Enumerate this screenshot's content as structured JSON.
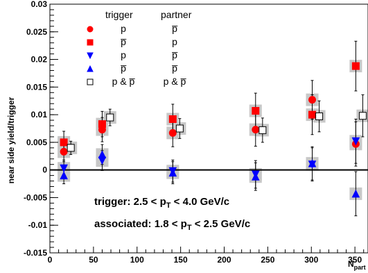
{
  "chart_data": {
    "type": "scatter",
    "ylabel": "near side yield/trigger",
    "xlabel": "N_part",
    "xlabel_main": "N",
    "xlabel_sub": "part",
    "xlim": [
      0,
      365
    ],
    "ylim": [
      -0.015,
      0.03
    ],
    "xticks": [
      0,
      50,
      100,
      150,
      200,
      250,
      300,
      350
    ],
    "xtick_labels": [
      "0",
      "50",
      "100",
      "150",
      "200",
      "250",
      "300",
      "350"
    ],
    "yticks": [
      -0.015,
      -0.01,
      -0.005,
      0,
      0.005,
      0.01,
      0.015,
      0.02,
      0.025,
      0.03
    ],
    "ytick_labels": [
      "-0.015",
      "-0.01",
      "-0.005",
      "0",
      "0.005",
      "0.01",
      "0.015",
      "0.02",
      "0.025",
      "0.03"
    ],
    "zero_line": true,
    "legend": {
      "header_trigger": "trigger",
      "header_partner": "partner",
      "placement": "top-left"
    },
    "series": [
      {
        "trigger": "p",
        "partner": "p̅",
        "marker": "circle",
        "color": "#ff0000",
        "filled": true,
        "points": [
          {
            "x": 16,
            "y": 0.0033,
            "err": 0.0018
          },
          {
            "x": 60,
            "y": 0.0073,
            "err": 0.0022
          },
          {
            "x": 141,
            "y": 0.0067,
            "err": 0.0025
          },
          {
            "x": 236,
            "y": 0.0073,
            "err": 0.003
          },
          {
            "x": 301,
            "y": 0.0127,
            "err": 0.0035
          },
          {
            "x": 351,
            "y": 0.0047,
            "err": 0.004
          }
        ]
      },
      {
        "trigger": "p̅",
        "partner": "p",
        "marker": "square",
        "color": "#ff0000",
        "filled": true,
        "points": [
          {
            "x": 16,
            "y": 0.005,
            "err": 0.002
          },
          {
            "x": 60,
            "y": 0.0083,
            "err": 0.0023
          },
          {
            "x": 141,
            "y": 0.0092,
            "err": 0.0027
          },
          {
            "x": 236,
            "y": 0.0107,
            "err": 0.0032
          },
          {
            "x": 301,
            "y": 0.01,
            "err": 0.0036
          },
          {
            "x": 351,
            "y": 0.0188,
            "err": 0.0045
          }
        ]
      },
      {
        "trigger": "p",
        "partner": "p̅",
        "marker": "triangle-down",
        "color": "#0000ff",
        "filled": true,
        "points": [
          {
            "x": 16,
            "y": 0.0003,
            "err": 0.0015
          },
          {
            "x": 60,
            "y": 0.0017,
            "err": 0.0018
          },
          {
            "x": 141,
            "y": -0.0002,
            "err": 0.002
          },
          {
            "x": 236,
            "y": -0.0008,
            "err": 0.0025
          },
          {
            "x": 301,
            "y": 0.001,
            "err": 0.003
          },
          {
            "x": 351,
            "y": 0.0052,
            "err": 0.004
          }
        ]
      },
      {
        "trigger": "p̅",
        "partner": "p̅",
        "marker": "triangle-up",
        "color": "#0000ff",
        "filled": true,
        "points": [
          {
            "x": 16,
            "y": -0.001,
            "err": 0.0015
          },
          {
            "x": 60,
            "y": 0.0028,
            "err": 0.0018
          },
          {
            "x": 141,
            "y": -0.0005,
            "err": 0.002
          },
          {
            "x": 236,
            "y": -0.0012,
            "err": 0.0025
          },
          {
            "x": 301,
            "y": 0.0012,
            "err": 0.003
          },
          {
            "x": 351,
            "y": -0.0043,
            "err": 0.004
          }
        ]
      },
      {
        "trigger": "p & p̅",
        "partner": "p & p̅",
        "marker": "square",
        "color": "#000000",
        "filled": false,
        "points": [
          {
            "x": 24,
            "y": 0.004,
            "err": 0.0012
          },
          {
            "x": 69,
            "y": 0.0095,
            "err": 0.0015
          },
          {
            "x": 149,
            "y": 0.0075,
            "err": 0.0018
          },
          {
            "x": 244,
            "y": 0.0072,
            "err": 0.0022
          },
          {
            "x": 309,
            "y": 0.0097,
            "err": 0.0028
          },
          {
            "x": 359,
            "y": 0.0098,
            "err": 0.0038
          }
        ]
      }
    ],
    "annotations": [
      {
        "id": "trigger-cut",
        "pre": "trigger: 2.5 < p",
        "sub": "T",
        "post": " < 4.0 GeV/c"
      },
      {
        "id": "assoc-cut",
        "pre": "associated: 1.8 < p",
        "sub": "T",
        "post": " < 2.5 GeV/c"
      }
    ]
  }
}
